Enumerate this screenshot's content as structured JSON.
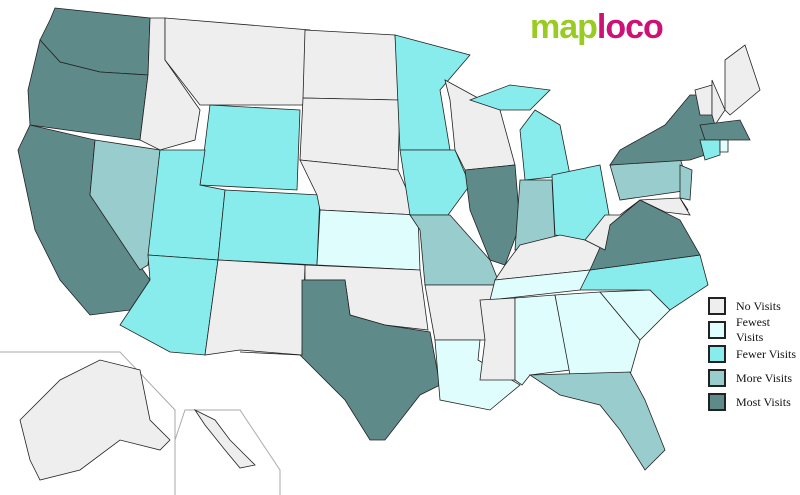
{
  "logo": {
    "part1": "map",
    "part2": "loco"
  },
  "levels": {
    "none": {
      "label": "No Visits",
      "color": "#eeeeee"
    },
    "fewest": {
      "label": "Fewest Visits",
      "color": "#e0fdfd"
    },
    "fewer": {
      "label": "Fewer Visits",
      "color": "#88ecec"
    },
    "more": {
      "label": "More Visits",
      "color": "#99cccc"
    },
    "most": {
      "label": "Most Visits",
      "color": "#5f8a8a"
    }
  },
  "legend_order": [
    "none",
    "fewest",
    "fewer",
    "more",
    "most"
  ],
  "states": {
    "WA": "most",
    "OR": "most",
    "CA": "most",
    "NV": "more",
    "ID": "none",
    "MT": "none",
    "WY": "fewer",
    "UT": "fewer",
    "CO": "fewer",
    "AZ": "fewer",
    "NM": "none",
    "ND": "none",
    "SD": "none",
    "NE": "none",
    "KS": "fewest",
    "OK": "none",
    "TX": "most",
    "MN": "fewer",
    "IA": "fewer",
    "MO": "more",
    "AR": "none",
    "LA": "fewest",
    "WI": "none",
    "IL": "most",
    "MI": "fewer",
    "MIU": "fewer",
    "IN": "more",
    "OH": "fewer",
    "KY": "none",
    "TN": "fewest",
    "MS": "none",
    "AL": "fewest",
    "GA": "fewest",
    "FL": "more",
    "SC": "fewest",
    "NC": "fewer",
    "VA": "most",
    "WV": "none",
    "PA": "more",
    "NY": "most",
    "VT": "none",
    "NH": "none",
    "ME": "none",
    "MA": "most",
    "CT": "fewer",
    "RI": "fewest",
    "NJ": "more",
    "DE": "fewer",
    "MD": "none",
    "AK": "none",
    "HI": "none"
  }
}
